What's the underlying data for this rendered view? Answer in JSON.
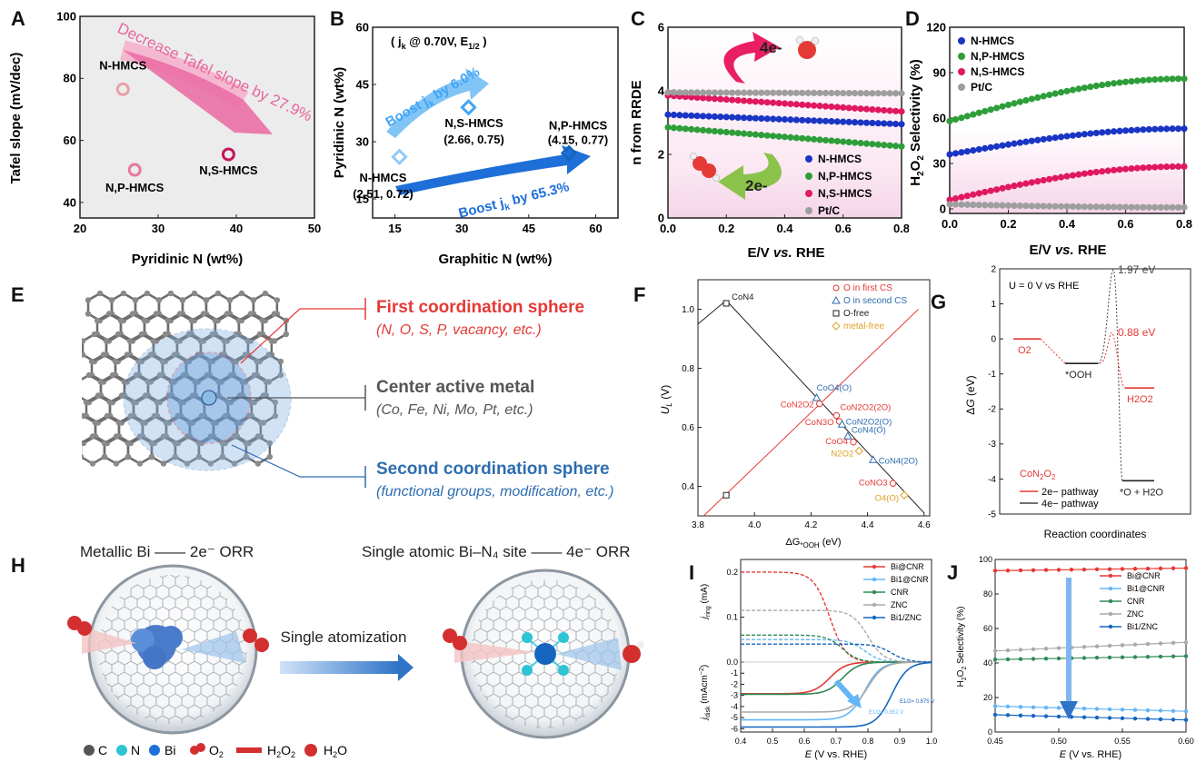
{
  "panel_letters": [
    "A",
    "B",
    "C",
    "D",
    "E",
    "F",
    "G",
    "H",
    "I",
    "J"
  ],
  "chart_data": [
    {
      "panel": "A",
      "type": "scatter",
      "xlabel": "Pyridinic N (wt%)",
      "ylabel": "Tafel slope (mV/dec)",
      "xlim": [
        20,
        50
      ],
      "ylim": [
        35,
        100
      ],
      "xticks": [
        20,
        30,
        40,
        50
      ],
      "yticks": [
        40,
        60,
        80,
        100
      ],
      "points": [
        {
          "label": "N-HMCS",
          "x": 25.5,
          "y": 76.5,
          "color": "#e8a0a8"
        },
        {
          "label": "N,P-HMCS",
          "x": 27.0,
          "y": 50.5,
          "color": "#e8789c"
        },
        {
          "label": "N,S-HMCS",
          "x": 39.0,
          "y": 55.5,
          "color": "#c2185b"
        }
      ],
      "annotations": [
        "Decrease Tafel slope by 27.9%"
      ]
    },
    {
      "panel": "B",
      "type": "scatter",
      "xlabel": "Graphitic N (wt%)",
      "ylabel": "Pyridinic N (wt%)",
      "xlim": [
        10,
        65
      ],
      "ylim": [
        10,
        60
      ],
      "xticks": [
        15,
        30,
        45,
        60
      ],
      "yticks": [
        15,
        30,
        45,
        60
      ],
      "header": "( j",
      "header_sub": "k",
      "header_tail": " @ 0.70V, E",
      "header_sub2": "1/2",
      "header_end": " )",
      "points": [
        {
          "label": "N-HMCS",
          "sublabel": "(2.51, 0.72)",
          "x": 16,
          "y": 26,
          "color": "#90caf9"
        },
        {
          "label": "N,S-HMCS",
          "sublabel": "(2.66, 0.75)",
          "x": 31.5,
          "y": 39,
          "color": "#42a5f5"
        },
        {
          "label": "N,P-HMCS",
          "sublabel": "(4.15, 0.77)",
          "x": 54,
          "y": 27,
          "color": "#1565c0"
        }
      ],
      "annotations": [
        {
          "pre": "Boost j",
          "sub": "k",
          "post": " by 6.0%"
        },
        {
          "pre": "Boost j",
          "sub": "k",
          "post": " by 65.3%"
        }
      ]
    },
    {
      "panel": "C",
      "type": "scatter",
      "xlabel_pre": "E/V ",
      "xlabel_em": "vs.",
      "xlabel_post": " RHE",
      "ylabel": "n from RRDE",
      "xlim": [
        0.0,
        0.8
      ],
      "ylim": [
        0,
        6
      ],
      "xticks": [
        0.0,
        0.2,
        0.4,
        0.6,
        0.8
      ],
      "yticks": [
        0,
        2,
        4,
        6
      ],
      "series": [
        {
          "name": "N-HMCS",
          "color": "#1a35c4",
          "start": 3.25,
          "end": 2.95
        },
        {
          "name": "N,P-HMCS",
          "color": "#2e9e3a",
          "start": 2.85,
          "end": 2.25
        },
        {
          "name": "N,S-HMCS",
          "color": "#e0195e",
          "start": 3.85,
          "end": 3.35
        },
        {
          "name": "Pt/C",
          "color": "#9e9e9e",
          "start": 3.95,
          "end": 3.92
        }
      ],
      "annotations": [
        "4e-",
        "2e-"
      ]
    },
    {
      "panel": "D",
      "type": "scatter",
      "xlabel_pre": "E/V ",
      "xlabel_em": "vs.",
      "xlabel_post": " RHE",
      "ylabel": "H2O2 Selectivity (%)",
      "xlim": [
        0.0,
        0.8
      ],
      "ylim": [
        -3,
        120
      ],
      "xticks": [
        0.0,
        0.2,
        0.4,
        0.6,
        0.8
      ],
      "yticks": [
        0,
        30,
        60,
        90,
        120
      ],
      "series": [
        {
          "name": "N-HMCS",
          "color": "#1a35c4",
          "start": 36,
          "end": 53
        },
        {
          "name": "N,P-HMCS",
          "color": "#2e9e3a",
          "start": 58,
          "end": 86
        },
        {
          "name": "N,S-HMCS",
          "color": "#e0195e",
          "start": 6,
          "end": 28
        },
        {
          "name": "Pt/C",
          "color": "#9e9e9e",
          "start": 3,
          "end": 1
        }
      ]
    },
    {
      "panel": "F",
      "type": "scatter",
      "xlabel": "ΔG*OOH (eV)",
      "ylabel": "UL (V)",
      "xlim": [
        3.8,
        4.62
      ],
      "ylim": [
        0.3,
        1.1
      ],
      "xticks": [
        3.8,
        4.0,
        4.2,
        4.4,
        4.6
      ],
      "yticks": [
        0.4,
        0.6,
        0.8,
        1.0
      ],
      "legend": [
        "O in first CS",
        "O in second CS",
        "O-free",
        "metal-free"
      ],
      "points": [
        {
          "label": "CoN4",
          "x": 3.9,
          "y": 1.02
        },
        {
          "label": "CoO4(O)",
          "x": 4.22,
          "y": 0.7
        },
        {
          "label": "CoN2O2",
          "x": 4.23,
          "y": 0.68
        },
        {
          "label": "CoN2O2(2O)",
          "x": 4.29,
          "y": 0.64
        },
        {
          "label": "CoN3O",
          "x": 4.3,
          "y": 0.62
        },
        {
          "label": "CoN2O2(O)",
          "x": 4.31,
          "y": 0.61
        },
        {
          "label": "CoN4(O)",
          "x": 4.33,
          "y": 0.57
        },
        {
          "label": "CoO4",
          "x": 4.35,
          "y": 0.55
        },
        {
          "label": "N2O2",
          "x": 4.37,
          "y": 0.52
        },
        {
          "label": "CoN4(2O)",
          "x": 4.42,
          "y": 0.49
        },
        {
          "label": "CoNO3",
          "x": 4.49,
          "y": 0.41
        },
        {
          "label": "O4(O)",
          "x": 4.53,
          "y": 0.37
        },
        {
          "label": "",
          "x": 3.9,
          "y": 0.37
        }
      ]
    },
    {
      "panel": "G",
      "type": "line",
      "xlabel": "Reaction coordinates",
      "ylabel": "ΔG (eV)",
      "ylim": [
        -5,
        2
      ],
      "yticks": [
        -5,
        -4,
        -3,
        -2,
        -1,
        0,
        1,
        2
      ],
      "header": "U = 0 V vs RHE",
      "states": [
        "O2",
        "*OOH",
        "H2O2",
        "*O + H2O"
      ],
      "levels": {
        "O2": 0,
        "*OOH": -0.7,
        "H2O2": -1.4,
        "*O + H2O": -4.05
      },
      "barriers": {
        "4e": 1.97,
        "2e": 0.88
      },
      "legend_title": "CoN2O2",
      "legend": [
        "2e− pathway",
        "4e− pathway"
      ]
    },
    {
      "panel": "I",
      "type": "line",
      "xlabel": "E (V vs. RHE)",
      "ylabel_top": "jring (mA)",
      "ylabel_bottom": "jdisk (mAcm−2)",
      "xlim": [
        0.4,
        1.0
      ],
      "xticks": [
        0.4,
        0.5,
        0.6,
        0.7,
        0.8,
        0.9,
        1.0
      ],
      "yticks": [
        -6,
        -5,
        -4,
        -3,
        -2,
        -1,
        0,
        0.1,
        0.2
      ],
      "series": [
        {
          "name": "Bi@CNR",
          "color": "#e53935",
          "ring": 0.2,
          "disk": -2.85,
          "mid": 0.68
        },
        {
          "name": "Bi1@CNR",
          "color": "#64b5f6",
          "ring": 0.05,
          "disk": -5.2,
          "mid": 0.79
        },
        {
          "name": "CNR",
          "color": "#2e8b57",
          "ring": 0.06,
          "disk": -2.9,
          "mid": 0.72
        },
        {
          "name": "ZNC",
          "color": "#aaaaaa",
          "ring": 0.115,
          "disk": -4.5,
          "mid": 0.8
        },
        {
          "name": "Bi1/ZNC",
          "color": "#1565c0",
          "ring": 0.04,
          "disk": -5.85,
          "mid": 0.875
        }
      ],
      "annotations": [
        "E1/2= 0.852 V",
        "E1/2= 0.875 V"
      ]
    },
    {
      "panel": "J",
      "type": "line",
      "xlabel": "E (V vs. RHE)",
      "ylabel": "H2O2 Selectivity (%)",
      "xlim": [
        0.45,
        0.6
      ],
      "ylim": [
        0,
        100
      ],
      "xticks": [
        0.45,
        0.5,
        0.55,
        0.6
      ],
      "yticks": [
        0,
        20,
        40,
        60,
        80,
        100
      ],
      "series": [
        {
          "name": "Bi@CNR",
          "color": "#e53935",
          "start": 93.5,
          "end": 95
        },
        {
          "name": "Bi1@CNR",
          "color": "#64b5f6",
          "start": 15,
          "end": 12
        },
        {
          "name": "CNR",
          "color": "#2e8b57",
          "start": 42,
          "end": 44
        },
        {
          "name": "ZNC",
          "color": "#aaaaaa",
          "start": 47,
          "end": 52
        },
        {
          "name": "Bi1/ZNC",
          "color": "#1565c0",
          "start": 10,
          "end": 7
        }
      ]
    }
  ],
  "panelE": {
    "first_title": "First coordination sphere",
    "first_sub": "(N, O, S, P, vacancy, etc.)",
    "center_title": "Center active metal",
    "center_sub": "(Co, Fe, Ni, Mo, Pt, etc.)",
    "second_title": "Second coordination sphere",
    "second_sub": "(functional groups, modification, etc.)"
  },
  "panelH": {
    "left_title": "Metallic Bi —— 2e⁻ ORR",
    "right_title": "Single atomic Bi–N₄ site —— 4e⁻ ORR",
    "arrow_label": "Single atomization",
    "legend": [
      "C",
      "N",
      "Bi",
      "O2",
      "H2O2",
      "H2O"
    ]
  },
  "colors": {
    "pink": "#e8669c",
    "blue": "#1565c0",
    "red": "#e53935",
    "green": "#2e9e3a",
    "grey": "#9e9e9e"
  }
}
